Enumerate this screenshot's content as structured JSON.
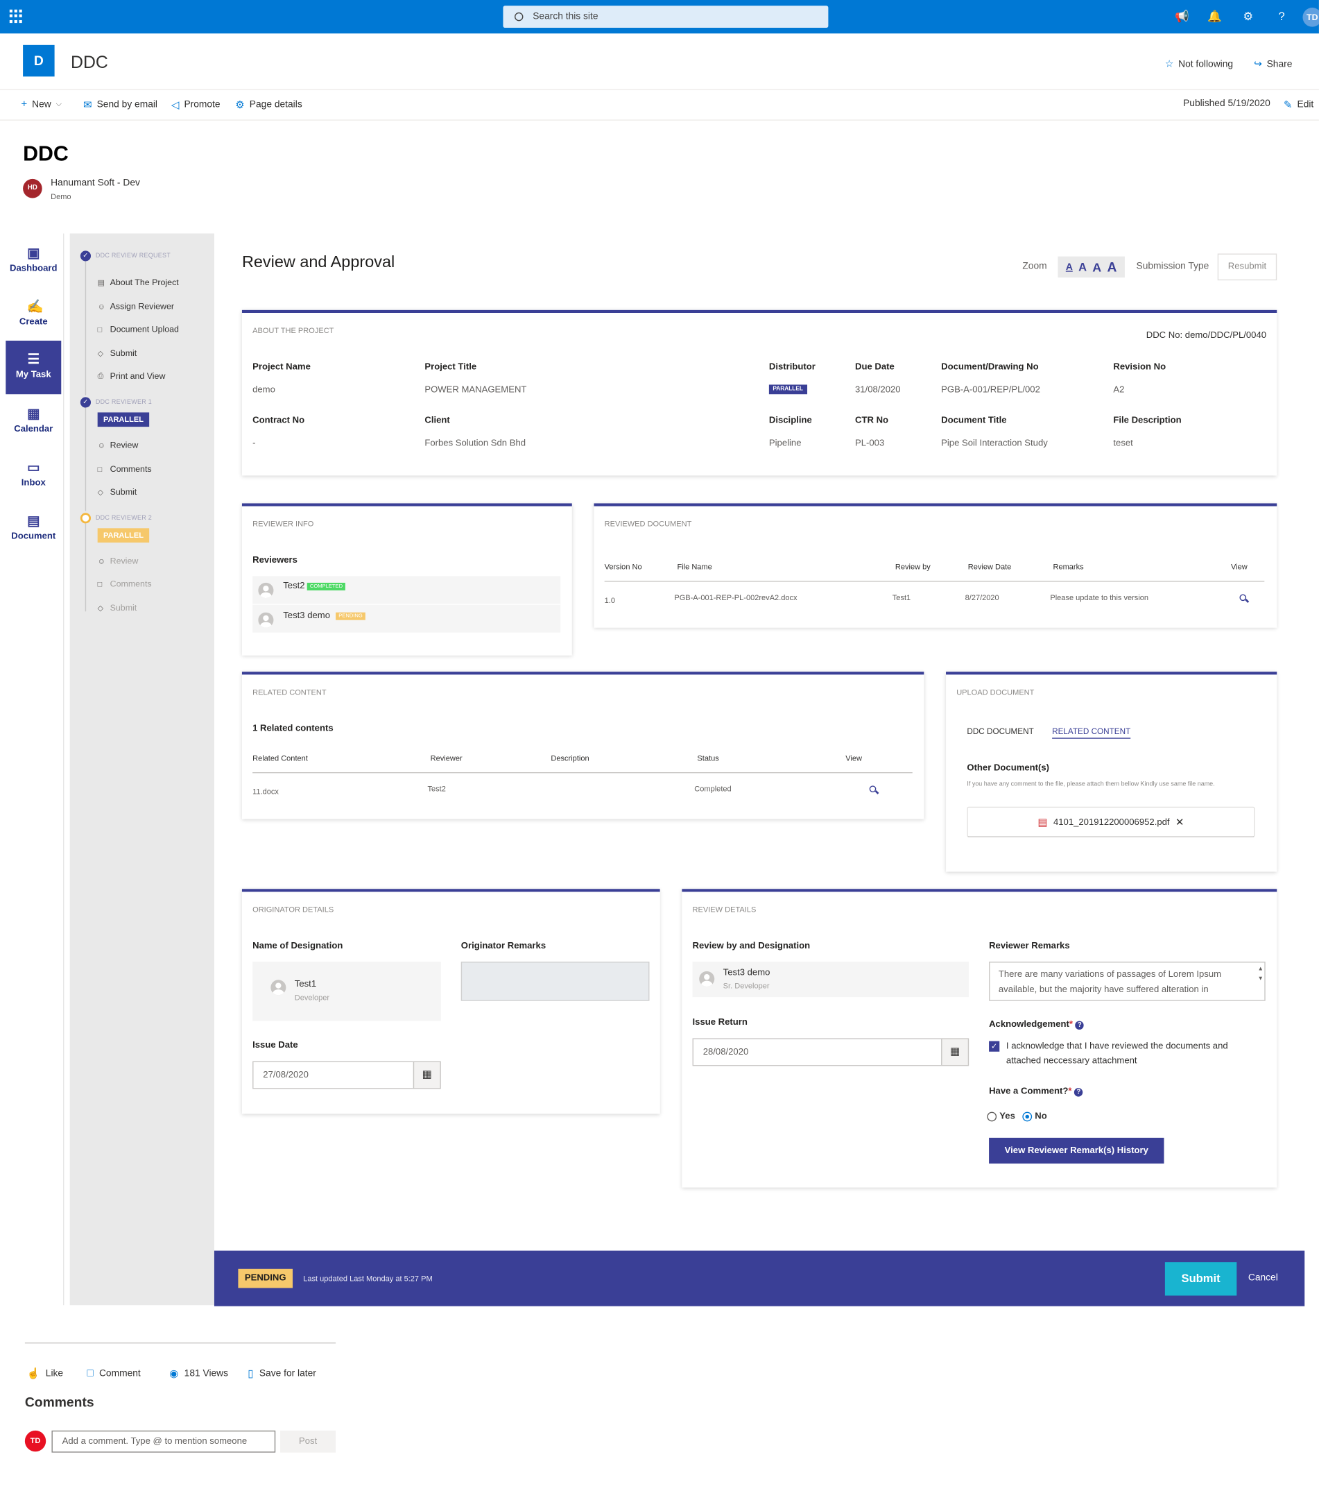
{
  "suite": {
    "search_placeholder": "Search this site",
    "user_initials": "TD"
  },
  "site": {
    "logo_letter": "D",
    "name": "DDC",
    "follow_label": "Not following",
    "share_label": "Share"
  },
  "commandbar": {
    "new": "New",
    "send_email": "Send by email",
    "promote": "Promote",
    "page_details": "Page details",
    "published": "Published 5/19/2020",
    "edit": "Edit"
  },
  "page": {
    "title": "DDC",
    "author_initials": "HD",
    "author_name": "Hanumant Soft - Dev",
    "author_sub": "Demo"
  },
  "left_nav": [
    {
      "label": "Dashboard",
      "icon": "dashboard-icon"
    },
    {
      "label": "Create",
      "icon": "edit-icon"
    },
    {
      "label": "My Task",
      "icon": "task-list-icon",
      "active": true
    },
    {
      "label": "Calendar",
      "icon": "calendar-icon"
    },
    {
      "label": "Inbox",
      "icon": "inbox-icon"
    },
    {
      "label": "Document",
      "icon": "document-icon"
    }
  ],
  "steps": {
    "request_head": "DDC REVIEW REQUEST",
    "request_items": [
      "About The Project",
      "Assign Reviewer",
      "Document Upload",
      "Submit",
      "Print and View"
    ],
    "reviewer1_head": "DDC REVIEWER 1",
    "reviewer1_badge": "PARALLEL",
    "reviewer1_items": [
      "Review",
      "Comments",
      "Submit"
    ],
    "reviewer2_head": "DDC REVIEWER 2",
    "reviewer2_badge": "PARALLEL",
    "reviewer2_items": [
      "Review",
      "Comments",
      "Submit"
    ]
  },
  "main": {
    "title": "Review and Approval",
    "zoom_label": "Zoom",
    "zoom_letters": [
      "A",
      "A",
      "A",
      "A"
    ],
    "submission_type_label": "Submission Type",
    "submission_type_value": "Resubmit"
  },
  "about": {
    "header": "ABOUT THE PROJECT",
    "ddc_no": "DDC No: demo/DDC/PL/0040",
    "project_name_l": "Project Name",
    "project_name": "demo",
    "project_title_l": "Project Title",
    "project_title": "POWER MANAGEMENT",
    "distributor_l": "Distributor",
    "distributor": "PARALLEL",
    "due_date_l": "Due Date",
    "due_date": "31/08/2020",
    "doc_no_l": "Document/Drawing No",
    "doc_no": "PGB-A-001/REP/PL/002",
    "revision_l": "Revision No",
    "revision": "A2",
    "contract_l": "Contract No",
    "contract": "-",
    "client_l": "Client",
    "client": "Forbes Solution Sdn Bhd",
    "discipline_l": "Discipline",
    "discipline": "Pipeline",
    "ctr_l": "CTR No",
    "ctr": "PL-003",
    "doc_title_l": "Document Title",
    "doc_title": "Pipe Soil Interaction Study",
    "file_desc_l": "File Description",
    "file_desc": "teset"
  },
  "reviewer_info": {
    "header": "REVIEWER INFO",
    "label": "Reviewers",
    "reviewers": [
      {
        "name": "Test2",
        "status": "COMPLETED"
      },
      {
        "name": "Test3 demo",
        "status": "PENDING"
      }
    ]
  },
  "reviewed_doc": {
    "header": "REVIEWED DOCUMENT",
    "columns": [
      "Version No",
      "File Name",
      "Review by",
      "Review Date",
      "Remarks",
      "View"
    ],
    "row": {
      "version": "1.0",
      "file": "PGB-A-001-REP-PL-002revA2.docx",
      "by": "Test1",
      "date": "8/27/2020",
      "remarks": "Please update to this version"
    }
  },
  "related": {
    "header": "RELATED CONTENT",
    "count": "1 Related contents",
    "columns": [
      "Related Content",
      "Reviewer",
      "Description",
      "Status",
      "View"
    ],
    "row": {
      "content": "11.docx",
      "reviewer": "Test2",
      "description": "",
      "status": "Completed"
    }
  },
  "upload": {
    "header": "UPLOAD DOCUMENT",
    "tab1": "DDC DOCUMENT",
    "tab2": "RELATED CONTENT",
    "other_label": "Other Document(s)",
    "hint": "If you have any comment to the file, please attach them bellow Kindly use same file name.",
    "file": "4101_201912200006952.pdf"
  },
  "originator": {
    "header": "ORIGINATOR DETAILS",
    "name_l": "Name of Designation",
    "remarks_l": "Originator Remarks",
    "person": "Test1",
    "role": "Developer",
    "issue_l": "Issue Date",
    "issue_date": "27/08/2020"
  },
  "review": {
    "header": "REVIEW DETAILS",
    "by_l": "Review by and Designation",
    "remarks_l": "Reviewer Remarks",
    "person": "Test3 demo",
    "role": "Sr. Developer",
    "remarks": "There are many variations of passages of Lorem Ipsum available, but the majority have suffered alteration in",
    "issue_return_l": "Issue Return",
    "issue_return": "28/08/2020",
    "ack_l": "Acknowledgement",
    "ack_text": "I acknowledge that I have reviewed the documents and attached neccessary attachment",
    "comment_l": "Have a Comment?",
    "yes": "Yes",
    "no": "No",
    "history_btn": "View Reviewer Remark(s) History"
  },
  "status_bar": {
    "status": "PENDING",
    "updated": "Last updated Last Monday at 5:27 PM",
    "submit": "Submit",
    "cancel": "Cancel"
  },
  "social": {
    "like": "Like",
    "comment": "Comment",
    "views": "181 Views",
    "save": "Save for later",
    "comments_title": "Comments",
    "user_initials": "TD",
    "placeholder": "Add a comment. Type @ to mention someone",
    "post": "Post"
  },
  "colors": {
    "suite": "#0078d4",
    "accent": "#3a3f96",
    "submit": "#19b4d0",
    "pending": "#f6c86b",
    "completed": "#4cd964"
  }
}
